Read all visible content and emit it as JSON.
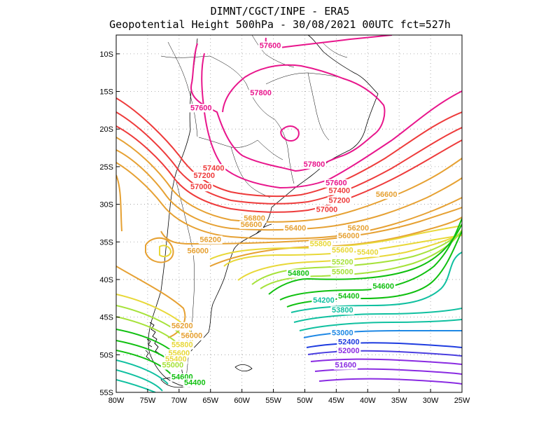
{
  "title": {
    "line1": "DIMNT/CGCT/INPE -  ERA5",
    "line2": "Geopotential Height 500hPa -  30/08/2021 00UTC fct=527h"
  },
  "axes": {
    "lon_labels": [
      "80W",
      "75W",
      "70W",
      "65W",
      "60W",
      "55W",
      "50W",
      "45W",
      "40W",
      "35W",
      "30W",
      "25W"
    ],
    "lon_values": [
      -80,
      -75,
      -70,
      -65,
      -60,
      -55,
      -50,
      -45,
      -40,
      -35,
      -30,
      -25
    ],
    "lat_labels": [
      "10S",
      "15S",
      "20S",
      "25S",
      "30S",
      "35S",
      "40S",
      "45S",
      "50S",
      "55S"
    ],
    "lat_values": [
      -10,
      -15,
      -20,
      -25,
      -30,
      -35,
      -40,
      -45,
      -50,
      -55
    ],
    "lon_range": [
      -80,
      -25
    ],
    "lat_range": [
      -55,
      -7.5
    ],
    "grid": "dotted"
  },
  "contours": {
    "levels": [
      57800,
      57600,
      57400,
      57200,
      57000,
      56800,
      56600,
      56400,
      56200,
      56000,
      55800,
      55600,
      55400,
      55200,
      55000,
      54800,
      54600,
      54400,
      54200,
      53800,
      53000,
      52400,
      52000,
      51600
    ],
    "colors": {
      "57800": "#e8168c",
      "57600": "#e8168c",
      "57400": "#ee3b3b",
      "57200": "#ee3b3b",
      "57000": "#ee3b3b",
      "56800": "#e6a133",
      "56600": "#e6a133",
      "56400": "#e6a133",
      "56200": "#e6a133",
      "56000": "#e6a133",
      "55800": "#e8d838",
      "55600": "#e8d838",
      "55400": "#e8d838",
      "55200": "#a6e23a",
      "55000": "#a6e23a",
      "54800": "#10c010",
      "54600": "#10c010",
      "54400": "#10c010",
      "54200": "#10c0a0",
      "53800": "#10c0a0",
      "53000": "#1e88e5",
      "52400": "#1e3ce0",
      "52000": "#8a2be2",
      "51600": "#8a2be2"
    }
  },
  "labels": [
    {
      "text": "57600",
      "lon": -55.5,
      "lat": -9.2,
      "color": "#e8168c"
    },
    {
      "text": "57800",
      "lon": -57.0,
      "lat": -15.5,
      "color": "#e8168c"
    },
    {
      "text": "57600",
      "lon": -66.5,
      "lat": -17.5,
      "color": "#e8168c"
    },
    {
      "text": "57800",
      "lon": -48.5,
      "lat": -25.0,
      "color": "#e8168c"
    },
    {
      "text": "57600",
      "lon": -45.0,
      "lat": -27.5,
      "color": "#e8168c"
    },
    {
      "text": "57400",
      "lon": -44.5,
      "lat": -28.5,
      "color": "#ee3b3b"
    },
    {
      "text": "57400",
      "lon": -64.5,
      "lat": -25.5,
      "color": "#ee3b3b"
    },
    {
      "text": "57200",
      "lon": -66.0,
      "lat": -26.5,
      "color": "#ee3b3b"
    },
    {
      "text": "57000",
      "lon": -66.5,
      "lat": -28.0,
      "color": "#ee3b3b"
    },
    {
      "text": "57200",
      "lon": -44.5,
      "lat": -29.8,
      "color": "#ee3b3b"
    },
    {
      "text": "57000",
      "lon": -46.5,
      "lat": -31.0,
      "color": "#ee3b3b"
    },
    {
      "text": "56600",
      "lon": -37.0,
      "lat": -29.0,
      "color": "#e6a133"
    },
    {
      "text": "56800",
      "lon": -58.0,
      "lat": -32.2,
      "color": "#e6a133"
    },
    {
      "text": "56600",
      "lon": -58.5,
      "lat": -33.0,
      "color": "#e6a133"
    },
    {
      "text": "56400",
      "lon": -51.5,
      "lat": -33.5,
      "color": "#e6a133"
    },
    {
      "text": "56200",
      "lon": -41.5,
      "lat": -33.5,
      "color": "#e6a133"
    },
    {
      "text": "56000",
      "lon": -43.0,
      "lat": -34.5,
      "color": "#e6a133"
    },
    {
      "text": "56200",
      "lon": -65.0,
      "lat": -35.0,
      "color": "#e6a133"
    },
    {
      "text": "56000",
      "lon": -67.0,
      "lat": -36.5,
      "color": "#e6a133"
    },
    {
      "text": "55800",
      "lon": -47.5,
      "lat": -35.6,
      "color": "#e8d838"
    },
    {
      "text": "55600",
      "lon": -44.0,
      "lat": -36.4,
      "color": "#e8d838"
    },
    {
      "text": "55400",
      "lon": -40.0,
      "lat": -36.7,
      "color": "#e8d838"
    },
    {
      "text": "55200",
      "lon": -44.0,
      "lat": -38.0,
      "color": "#a6e23a"
    },
    {
      "text": "55000",
      "lon": -44.0,
      "lat": -39.3,
      "color": "#a6e23a"
    },
    {
      "text": "54800",
      "lon": -51.0,
      "lat": -39.5,
      "color": "#10c010"
    },
    {
      "text": "54600",
      "lon": -37.5,
      "lat": -41.2,
      "color": "#10c010"
    },
    {
      "text": "54400",
      "lon": -43.0,
      "lat": -42.5,
      "color": "#10c010"
    },
    {
      "text": "54200",
      "lon": -47.0,
      "lat": -43.1,
      "color": "#10c0a0"
    },
    {
      "text": "53800",
      "lon": -44.0,
      "lat": -44.4,
      "color": "#10c0a0"
    },
    {
      "text": "53000",
      "lon": -44.0,
      "lat": -47.4,
      "color": "#1e88e5"
    },
    {
      "text": "52400",
      "lon": -43.0,
      "lat": -48.6,
      "color": "#1e3ce0"
    },
    {
      "text": "52000",
      "lon": -43.0,
      "lat": -49.8,
      "color": "#8a2be2"
    },
    {
      "text": "51600",
      "lon": -43.5,
      "lat": -51.7,
      "color": "#8a2be2"
    },
    {
      "text": "56200",
      "lon": -69.5,
      "lat": -46.5,
      "color": "#e6a133"
    },
    {
      "text": "56000",
      "lon": -68.0,
      "lat": -47.8,
      "color": "#e6a133"
    },
    {
      "text": "55800",
      "lon": -69.5,
      "lat": -49.0,
      "color": "#e8d838"
    },
    {
      "text": "55600",
      "lon": -70.0,
      "lat": -50.1,
      "color": "#e8d838"
    },
    {
      "text": "55400",
      "lon": -70.5,
      "lat": -50.9,
      "color": "#e8d838"
    },
    {
      "text": "55000",
      "lon": -71.0,
      "lat": -51.7,
      "color": "#a6e23a"
    },
    {
      "text": "54600",
      "lon": -69.5,
      "lat": -53.3,
      "color": "#10c010"
    },
    {
      "text": "54400",
      "lon": -67.5,
      "lat": -54.0,
      "color": "#10c010"
    }
  ]
}
